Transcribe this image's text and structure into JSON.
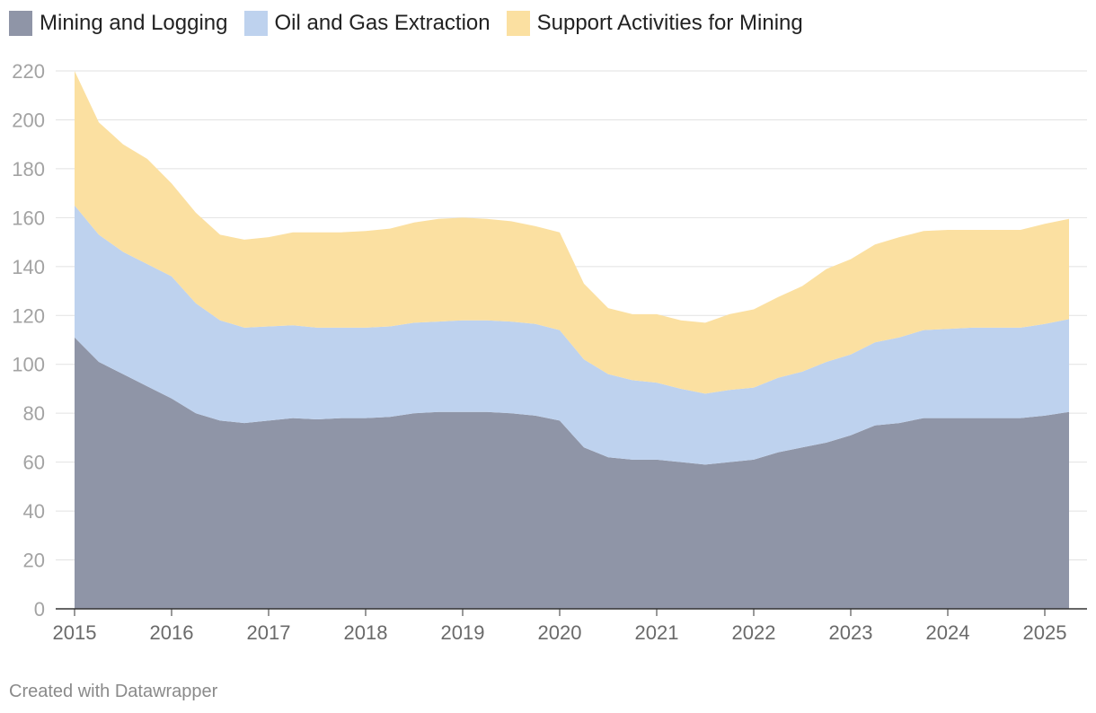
{
  "legend": [
    {
      "label": "Mining and Logging",
      "color": "#8f95a7"
    },
    {
      "label": "Oil and Gas Extraction",
      "color": "#bed2ee"
    },
    {
      "label": "Support Activities for Mining",
      "color": "#fbe0a1"
    }
  ],
  "credit": "Created with Datawrapper",
  "chart_data": {
    "type": "area",
    "stacked": true,
    "title": "",
    "xlabel": "",
    "ylabel": "",
    "ylim": [
      0,
      220
    ],
    "xlim": [
      2015.0,
      2025.25
    ],
    "yticks": [
      0,
      20,
      40,
      60,
      80,
      100,
      120,
      140,
      160,
      180,
      200,
      220
    ],
    "xticks": [
      2015,
      2016,
      2017,
      2018,
      2019,
      2020,
      2021,
      2022,
      2023,
      2024,
      2025
    ],
    "grid": true,
    "legend_position": "top-left",
    "x": [
      2015.0,
      2015.25,
      2015.5,
      2015.75,
      2016.0,
      2016.25,
      2016.5,
      2016.75,
      2017.0,
      2017.25,
      2017.5,
      2017.75,
      2018.0,
      2018.25,
      2018.5,
      2018.75,
      2019.0,
      2019.25,
      2019.5,
      2019.75,
      2020.0,
      2020.25,
      2020.5,
      2020.75,
      2021.0,
      2021.25,
      2021.5,
      2021.75,
      2022.0,
      2022.25,
      2022.5,
      2022.75,
      2023.0,
      2023.25,
      2023.5,
      2023.75,
      2024.0,
      2024.25,
      2024.5,
      2024.75,
      2025.0,
      2025.25
    ],
    "series": [
      {
        "name": "Mining and Logging",
        "values": [
          111,
          101,
          96,
          91,
          86,
          80,
          77,
          76,
          77,
          78,
          77.5,
          78,
          78,
          78.5,
          80,
          80.5,
          80.5,
          80.5,
          80,
          79,
          77,
          66,
          62,
          61,
          61,
          60,
          59,
          60,
          61,
          64,
          66,
          68,
          71,
          75,
          76,
          78,
          78,
          78,
          78,
          78,
          79,
          80.5
        ]
      },
      {
        "name": "Oil and Gas Extraction",
        "values": [
          54,
          52,
          50,
          50,
          50,
          45,
          41,
          39,
          38.5,
          38,
          37.5,
          37,
          37,
          37,
          37,
          37,
          37.5,
          37.5,
          37.5,
          37.5,
          37,
          36,
          34,
          32.5,
          31.5,
          30,
          29,
          29.5,
          29.5,
          30.5,
          31,
          33,
          33,
          34,
          35,
          36,
          36.5,
          37,
          37,
          37,
          37.5,
          38
        ]
      },
      {
        "name": "Support Activities for Mining",
        "values": [
          55,
          46,
          44,
          43,
          38,
          37,
          35,
          36,
          36.5,
          38,
          39,
          39,
          39.5,
          40,
          41,
          42,
          42,
          41.5,
          41,
          40,
          40,
          31,
          27,
          27,
          28,
          28,
          29,
          31,
          32,
          33,
          35,
          38,
          39,
          40,
          41,
          40.5,
          40.5,
          40,
          40,
          40,
          41,
          41
        ]
      }
    ]
  }
}
